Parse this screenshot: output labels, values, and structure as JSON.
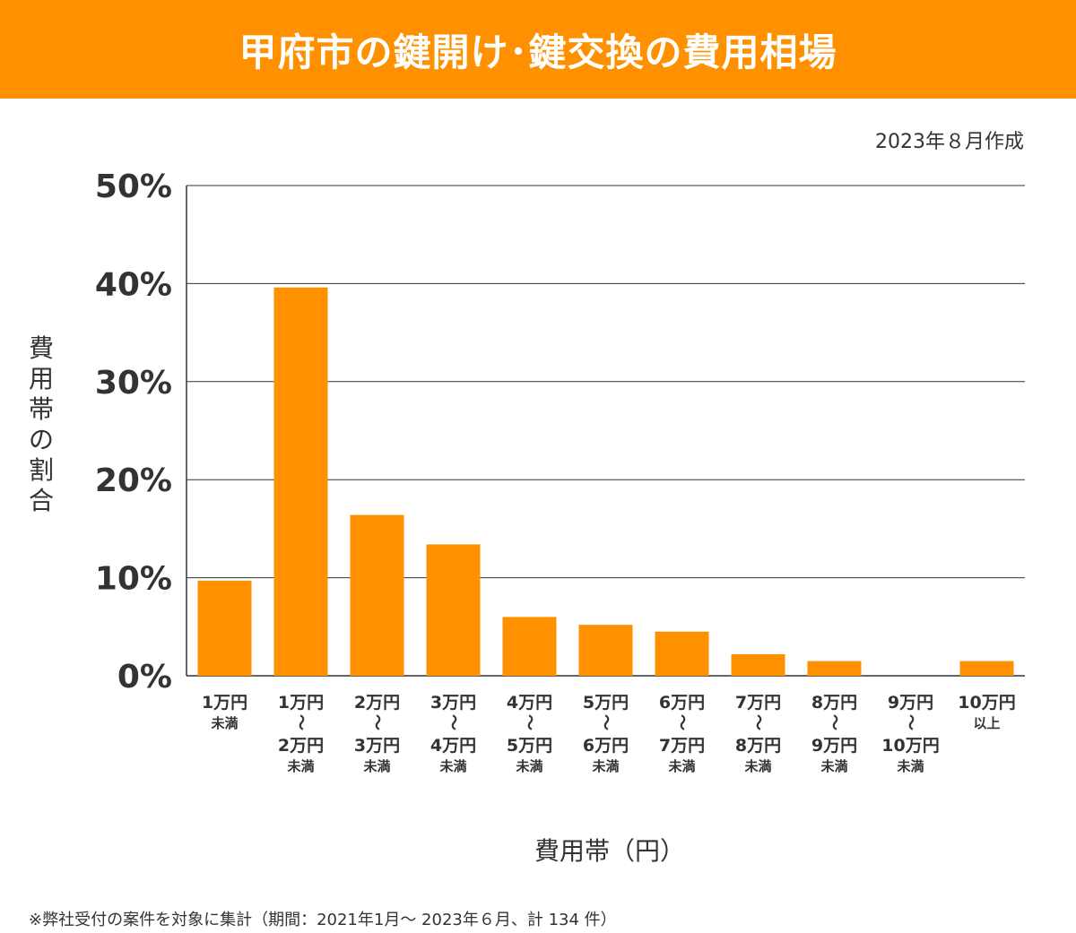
{
  "header": {
    "title": "甲府市の鍵開け･鍵交換の費用相場"
  },
  "created_note": "2023年８月作成",
  "footnote": "※弊社受付の案件を対象に集計（期間：2021年1月～ 2023年６月、計 134 件）",
  "colors": {
    "accent": "#FF9000",
    "bar": "#FF9000",
    "grid": "#333333"
  },
  "chart_data": {
    "type": "bar",
    "xlabel": "費用帯（円）",
    "ylabel": "費用帯の割合",
    "ylim": [
      0,
      50
    ],
    "yticks": [
      "0%",
      "10%",
      "20%",
      "30%",
      "40%",
      "50%"
    ],
    "ytick_values": [
      0,
      10,
      20,
      30,
      40,
      50
    ],
    "grid": true,
    "categories": [
      {
        "lines": [
          "1万円",
          "未満"
        ]
      },
      {
        "lines": [
          "1万円",
          "～",
          "2万円",
          "未満"
        ]
      },
      {
        "lines": [
          "2万円",
          "～",
          "3万円",
          "未満"
        ]
      },
      {
        "lines": [
          "3万円",
          "～",
          "4万円",
          "未満"
        ]
      },
      {
        "lines": [
          "4万円",
          "～",
          "5万円",
          "未満"
        ]
      },
      {
        "lines": [
          "5万円",
          "～",
          "6万円",
          "未満"
        ]
      },
      {
        "lines": [
          "6万円",
          "～",
          "7万円",
          "未満"
        ]
      },
      {
        "lines": [
          "7万円",
          "～",
          "8万円",
          "未満"
        ]
      },
      {
        "lines": [
          "8万円",
          "～",
          "9万円",
          "未満"
        ]
      },
      {
        "lines": [
          "9万円",
          "～",
          "10万円",
          "未満"
        ]
      },
      {
        "lines": [
          "10万円",
          "以上"
        ]
      }
    ],
    "values": [
      9.7,
      39.6,
      16.4,
      13.4,
      6.0,
      5.2,
      4.5,
      2.2,
      1.5,
      0.0,
      1.5
    ]
  }
}
